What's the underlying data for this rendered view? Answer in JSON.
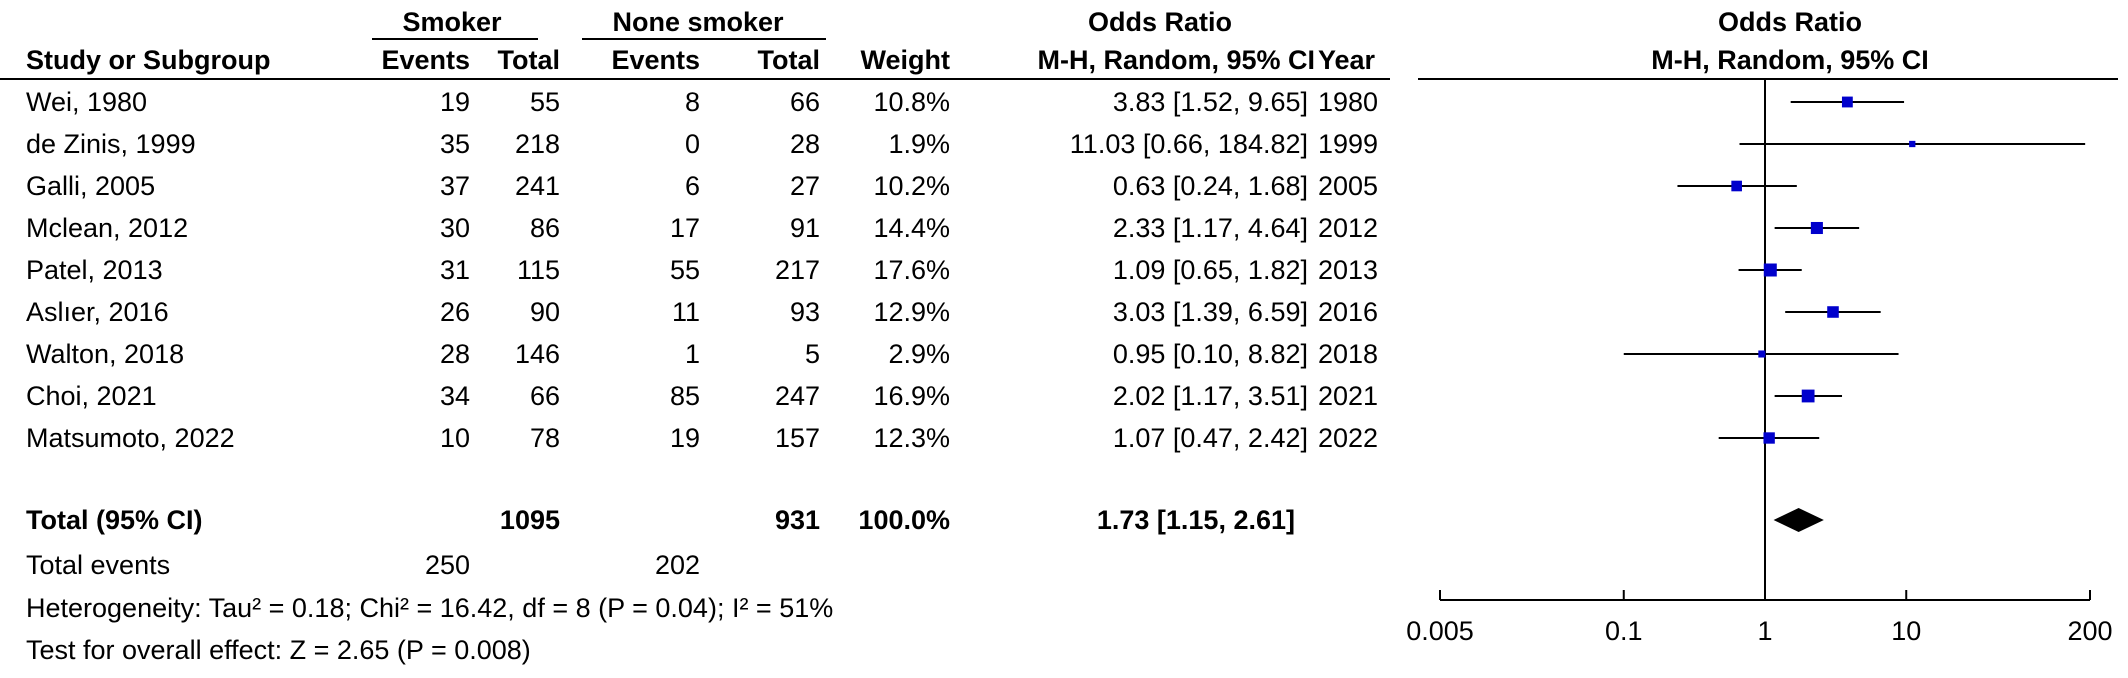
{
  "header": {
    "group1": "Smoker",
    "group2": "None smoker",
    "odds_ratio": "Odds Ratio",
    "odds_ratio_plot": "Odds Ratio",
    "study": "Study or Subgroup",
    "events1": "Events",
    "total1": "Total",
    "events2": "Events",
    "total2": "Total",
    "weight": "Weight",
    "method": "M-H, Random, 95% CI",
    "year": "Year",
    "method_plot": "M-H, Random, 95% CI"
  },
  "rows": [
    {
      "study": "Wei, 1980",
      "e1": "19",
      "t1": "55",
      "e2": "8",
      "t2": "66",
      "weight": "10.8%",
      "ci": "3.83 [1.52, 9.65]",
      "year": "1980"
    },
    {
      "study": "de Zinis, 1999",
      "e1": "35",
      "t1": "218",
      "e2": "0",
      "t2": "28",
      "weight": "1.9%",
      "ci": "11.03 [0.66, 184.82]",
      "year": "1999"
    },
    {
      "study": "Galli, 2005",
      "e1": "37",
      "t1": "241",
      "e2": "6",
      "t2": "27",
      "weight": "10.2%",
      "ci": "0.63 [0.24, 1.68]",
      "year": "2005"
    },
    {
      "study": "Mclean, 2012",
      "e1": "30",
      "t1": "86",
      "e2": "17",
      "t2": "91",
      "weight": "14.4%",
      "ci": "2.33 [1.17, 4.64]",
      "year": "2012"
    },
    {
      "study": "Patel, 2013",
      "e1": "31",
      "t1": "115",
      "e2": "55",
      "t2": "217",
      "weight": "17.6%",
      "ci": "1.09 [0.65, 1.82]",
      "year": "2013"
    },
    {
      "study": "Aslıer, 2016",
      "e1": "26",
      "t1": "90",
      "e2": "11",
      "t2": "93",
      "weight": "12.9%",
      "ci": "3.03 [1.39, 6.59]",
      "year": "2016"
    },
    {
      "study": "Walton, 2018",
      "e1": "28",
      "t1": "146",
      "e2": "1",
      "t2": "5",
      "weight": "2.9%",
      "ci": "0.95 [0.10, 8.82]",
      "year": "2018"
    },
    {
      "study": "Choi, 2021",
      "e1": "34",
      "t1": "66",
      "e2": "85",
      "t2": "247",
      "weight": "16.9%",
      "ci": "2.02 [1.17, 3.51]",
      "year": "2021"
    },
    {
      "study": "Matsumoto, 2022",
      "e1": "10",
      "t1": "78",
      "e2": "19",
      "t2": "157",
      "weight": "12.3%",
      "ci": "1.07 [0.47, 2.42]",
      "year": "2022"
    }
  ],
  "total": {
    "label": "Total (95% CI)",
    "t1": "1095",
    "t2": "931",
    "weight": "100.0%",
    "ci": "1.73 [1.15, 2.61]"
  },
  "total_events": {
    "label": "Total events",
    "e1": "250",
    "e2": "202"
  },
  "heterogeneity": "Heterogeneity: Tau² = 0.18; Chi² = 16.42, df = 8 (P = 0.04); I² = 51%",
  "overall_effect": "Test for overall effect: Z = 2.65 (P = 0.008)",
  "chart_data": {
    "type": "scatter",
    "title": "Odds Ratio",
    "subtitle": "M-H, Random, 95% CI",
    "x_scale": "log",
    "xlim": [
      0.005,
      200
    ],
    "reference_line": 1,
    "x_ticks": [
      "0.005",
      "0.1",
      "1",
      "10",
      "200"
    ],
    "x_tick_values": [
      0.005,
      0.1,
      1,
      10,
      200
    ],
    "series": [
      {
        "values": [
          {
            "study": "Wei, 1980",
            "or": 3.83,
            "lower": 1.52,
            "upper": 9.65,
            "weight": 10.8
          },
          {
            "study": "de Zinis, 1999",
            "or": 11.03,
            "lower": 0.66,
            "upper": 184.82,
            "weight": 1.9
          },
          {
            "study": "Galli, 2005",
            "or": 0.63,
            "lower": 0.24,
            "upper": 1.68,
            "weight": 10.2
          },
          {
            "study": "Mclean, 2012",
            "or": 2.33,
            "lower": 1.17,
            "upper": 4.64,
            "weight": 14.4
          },
          {
            "study": "Patel, 2013",
            "or": 1.09,
            "lower": 0.65,
            "upper": 1.82,
            "weight": 17.6
          },
          {
            "study": "Aslıer, 2016",
            "or": 3.03,
            "lower": 1.39,
            "upper": 6.59,
            "weight": 12.9
          },
          {
            "study": "Walton, 2018",
            "or": 0.95,
            "lower": 0.1,
            "upper": 8.82,
            "weight": 2.9
          },
          {
            "study": "Choi, 2021",
            "or": 2.02,
            "lower": 1.17,
            "upper": 3.51,
            "weight": 16.9
          },
          {
            "study": "Matsumoto, 2022",
            "or": 1.07,
            "lower": 0.47,
            "upper": 2.42,
            "weight": 12.3
          }
        ]
      }
    ],
    "pooled": {
      "or": 1.73,
      "lower": 1.15,
      "upper": 2.61
    },
    "colors": {
      "marker": "#0000cc",
      "line": "#000000",
      "diamond": "#000000"
    }
  }
}
